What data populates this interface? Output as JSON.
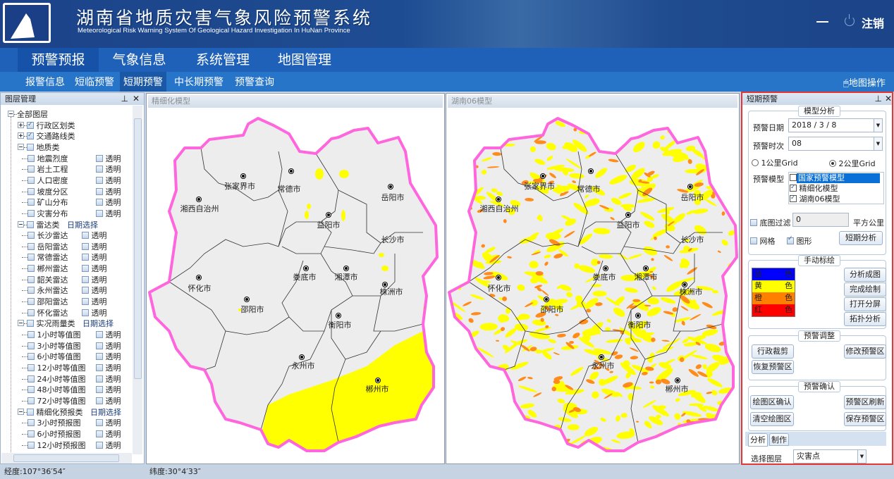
{
  "header": {
    "title": "湖南省地质灾害气象风险预警系统",
    "subtitle": "Meteorological Risk Warning System Of Geological Hazard Investigation In HuNan Province",
    "logout": "注销"
  },
  "nav": {
    "tabs": [
      {
        "label": "预警预报",
        "active": true
      },
      {
        "label": "气象信息"
      },
      {
        "label": "系统管理"
      },
      {
        "label": "地图管理"
      }
    ]
  },
  "subnav": {
    "tabs": [
      {
        "label": "报警信息"
      },
      {
        "label": "短临预警"
      },
      {
        "label": "短期预警",
        "active": true
      },
      {
        "label": "中长期预警"
      },
      {
        "label": "预警查询"
      }
    ],
    "map_ops": "地图操作"
  },
  "layers": {
    "title": "图层管理",
    "trans": "透明",
    "date": "日期选择",
    "rows": [
      {
        "label": "全部图层",
        "lvl": 0,
        "exp": "minus",
        "nocb": true
      },
      {
        "label": "行政区划类",
        "lvl": 1,
        "exp": "plus",
        "checked": true
      },
      {
        "label": "交通路线类",
        "lvl": 1,
        "exp": "plus",
        "checked": true
      },
      {
        "label": "地质类",
        "lvl": 1,
        "exp": "minus"
      },
      {
        "label": "地震烈度",
        "lvl": 2,
        "t": 1
      },
      {
        "label": "岩土工程",
        "lvl": 2,
        "t": 1
      },
      {
        "label": "人口密度",
        "lvl": 2,
        "t": 1
      },
      {
        "label": "坡度分区",
        "lvl": 2,
        "t": 1
      },
      {
        "label": "矿山分布",
        "lvl": 2,
        "t": 1
      },
      {
        "label": "灾害分布",
        "lvl": 2,
        "t": 1
      },
      {
        "label": "雷达类",
        "lvl": 1,
        "exp": "minus",
        "date": true
      },
      {
        "label": "长沙雷达",
        "lvl": 2,
        "t": 2
      },
      {
        "label": "岳阳雷达",
        "lvl": 2,
        "t": 2
      },
      {
        "label": "常德雷达",
        "lvl": 2,
        "t": 2
      },
      {
        "label": "郴州雷达",
        "lvl": 2,
        "t": 2
      },
      {
        "label": "韶关雷达",
        "lvl": 2,
        "t": 2
      },
      {
        "label": "永州雷达",
        "lvl": 2,
        "t": 2
      },
      {
        "label": "邵阳雷达",
        "lvl": 2,
        "t": 2
      },
      {
        "label": "怀化雷达",
        "lvl": 2,
        "t": 2
      },
      {
        "label": "实况雨量类",
        "lvl": 1,
        "exp": "minus",
        "date": true
      },
      {
        "label": "1小时等值图",
        "lvl": 2,
        "t": 1
      },
      {
        "label": "3小时等值图",
        "lvl": 2,
        "t": 1
      },
      {
        "label": "6小时等值图",
        "lvl": 2,
        "t": 1
      },
      {
        "label": "12小时等值图",
        "lvl": 2,
        "t": 1
      },
      {
        "label": "24小时等值图",
        "lvl": 2,
        "t": 1
      },
      {
        "label": "48小时等值图",
        "lvl": 2,
        "t": 1
      },
      {
        "label": "72小时等值图",
        "lvl": 2,
        "t": 1
      },
      {
        "label": "精细化预报类",
        "lvl": 1,
        "exp": "minus",
        "date": true
      },
      {
        "label": "3小时预报图",
        "lvl": 2,
        "t": 1
      },
      {
        "label": "6小时预报图",
        "lvl": 2,
        "t": 1
      },
      {
        "label": "12小时预报图",
        "lvl": 2,
        "t": 1
      }
    ]
  },
  "maps": {
    "left_title": "精细化模型",
    "right_title": "湖南06模型",
    "cities": [
      "张家界市",
      "常德市",
      "岳阳市",
      "湘西自治州",
      "益阳市",
      "长沙市",
      "怀化市",
      "娄底市",
      "湘潭市",
      "株洲市",
      "邵阳市",
      "衡阳市",
      "永州市",
      "郴州市"
    ],
    "colors": {
      "boundary": "#ff66dd",
      "fill": "#ededed",
      "yellow": "#ffff00",
      "orange": "#ff8c1a"
    }
  },
  "panel": {
    "title": "短期预警",
    "model": {
      "legend": "模型分析",
      "date_label": "预警日期",
      "date_value": "2018 / 3 / 8",
      "time_label": "预警时次",
      "time_value": "08",
      "grid1": "1公里Grid",
      "grid2": "2公里Grid",
      "grid_selected": "2公里Grid",
      "model_label": "预警模型",
      "models": [
        {
          "label": "国家预警模型",
          "checked": false,
          "selected": true
        },
        {
          "label": "精细化模型",
          "checked": true
        },
        {
          "label": "湖南06模型",
          "checked": true
        }
      ],
      "filter_label": "底图过滤",
      "filter_value": "0",
      "filter_unit": "平方公里",
      "grid_cb": "网格",
      "shape_cb": "图形",
      "analyze": "短期分析"
    },
    "manual": {
      "legend": "手动标绘",
      "colors": [
        {
          "a": "蓝",
          "b": "色",
          "c": "#0000ff"
        },
        {
          "a": "黄",
          "b": "色",
          "c": "#ffff00"
        },
        {
          "a": "橙",
          "b": "色",
          "c": "#ff7f00"
        },
        {
          "a": "红",
          "b": "色",
          "c": "#ff0000"
        }
      ],
      "buttons": [
        "分析成图",
        "完成绘制",
        "打开分屏",
        "拓扑分析"
      ]
    },
    "adjust": {
      "legend": "预警调整",
      "crop": "行政裁剪",
      "modify": "修改预警区",
      "restore": "恢复预警区"
    },
    "confirm": {
      "legend": "预警确认",
      "confirm_draw": "绘图区确认",
      "refresh": "预警区刷新",
      "clear": "清空绘图区",
      "save": "保存预警区"
    },
    "tabs": [
      "分析",
      "制作"
    ],
    "layer_label": "选择图层",
    "layer_value": "灾害点"
  },
  "status": {
    "lon": "经度:107°36′54″",
    "lat": "纬度:30°4′33″"
  }
}
